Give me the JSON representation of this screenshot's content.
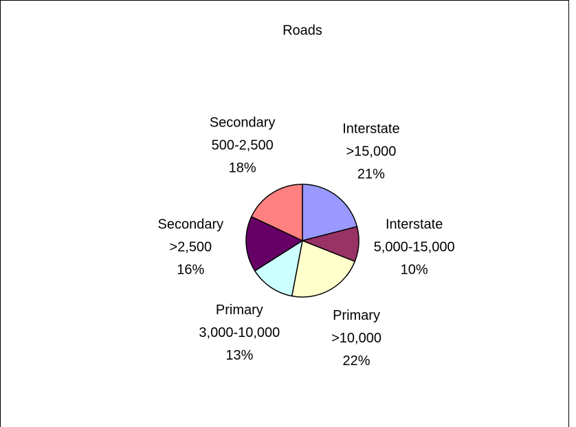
{
  "chart_data": {
    "type": "pie",
    "title": "Roads",
    "categories": [
      [
        "Interstate",
        ">15,000"
      ],
      [
        "Interstate",
        "5,000-15,000"
      ],
      [
        "Primary",
        ">10,000"
      ],
      [
        "Primary",
        "3,000-10,000"
      ],
      [
        "Secondary",
        ">2,500"
      ],
      [
        "Secondary",
        "500-2,500"
      ]
    ],
    "values": [
      21,
      10,
      22,
      13,
      16,
      18
    ],
    "value_labels": [
      "21%",
      "10%",
      "22%",
      "13%",
      "16%",
      "18%"
    ],
    "colors": [
      "#9999ff",
      "#993366",
      "#ffffcc",
      "#ccffff",
      "#660066",
      "#ff8080"
    ]
  }
}
